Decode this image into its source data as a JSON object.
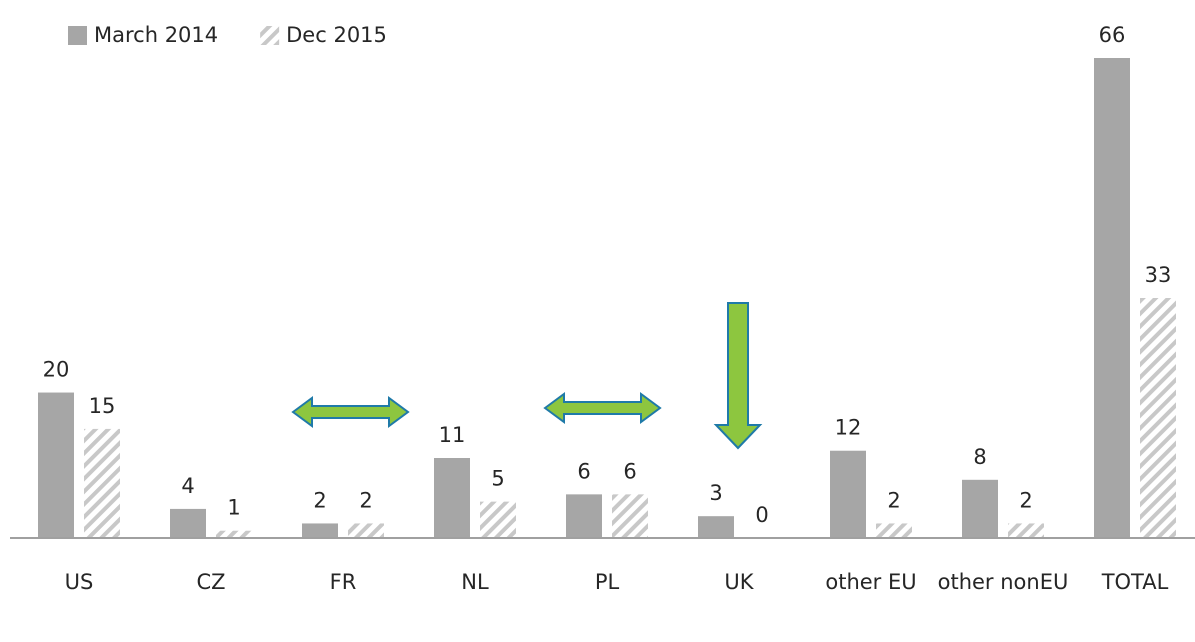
{
  "chart_data": {
    "type": "bar",
    "categories": [
      "US",
      "CZ",
      "FR",
      "NL",
      "PL",
      "UK",
      "other EU",
      "other nonEU",
      "TOTAL"
    ],
    "series": [
      {
        "name": "March 2014",
        "color": "#a6a6a6",
        "values": [
          20,
          4,
          2,
          11,
          6,
          3,
          12,
          8,
          66
        ]
      },
      {
        "name": "Dec 2015",
        "color": "#a6a6a6",
        "hatch": true,
        "values": [
          15,
          1,
          2,
          5,
          6,
          0,
          2,
          2,
          33
        ]
      }
    ],
    "legend": "top-left"
  }
}
